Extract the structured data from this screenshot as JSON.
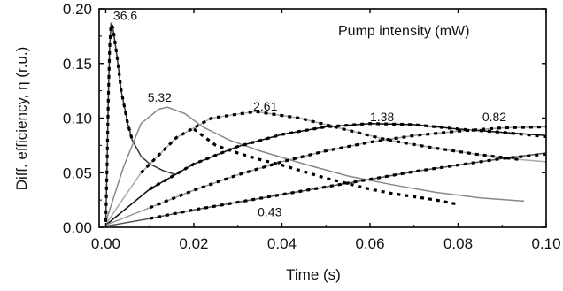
{
  "chart_data": {
    "type": "line",
    "xlabel": "Time (s)",
    "ylabel": "Diff. efficiency, η (r.u.)",
    "xlim": [
      -0.0015,
      0.1
    ],
    "ylim": [
      0.0,
      0.2
    ],
    "xticks": [
      "0.00",
      "0.02",
      "0.04",
      "0.06",
      "0.08",
      "0.10"
    ],
    "yticks": [
      "0.00",
      "0.05",
      "0.10",
      "0.15",
      "0.20"
    ],
    "legend_title": "Pump intensity (mW)",
    "grid": false,
    "series": [
      {
        "name": "36.6",
        "line_color": "#333333",
        "points": [
          [
            0,
            0.005
          ],
          [
            0.0003,
            0.06
          ],
          [
            0.0006,
            0.12
          ],
          [
            0.0009,
            0.165
          ],
          [
            0.0012,
            0.186
          ],
          [
            0.0016,
            0.183
          ],
          [
            0.002,
            0.172
          ],
          [
            0.0025,
            0.158
          ],
          [
            0.003,
            0.142
          ],
          [
            0.0035,
            0.125
          ],
          [
            0.004,
            0.115
          ],
          [
            0.005,
            0.095
          ],
          [
            0.006,
            0.08
          ],
          [
            0.008,
            0.065
          ],
          [
            0.01,
            0.058
          ],
          [
            0.013,
            0.052
          ],
          [
            0.016,
            0.048
          ]
        ],
        "fit": [
          [
            0,
            0.005
          ],
          [
            0.0003,
            0.06
          ],
          [
            0.0006,
            0.12
          ],
          [
            0.0009,
            0.165
          ],
          [
            0.0012,
            0.186
          ],
          [
            0.0016,
            0.183
          ],
          [
            0.002,
            0.172
          ],
          [
            0.0025,
            0.158
          ],
          [
            0.003,
            0.142
          ],
          [
            0.0035,
            0.125
          ],
          [
            0.004,
            0.115
          ],
          [
            0.005,
            0.095
          ],
          [
            0.006,
            0.08
          ]
        ]
      },
      {
        "name": "5.32",
        "line_color": "#888888",
        "points": [
          [
            0,
            0.005
          ],
          [
            0.004,
            0.055
          ],
          [
            0.008,
            0.095
          ],
          [
            0.012,
            0.108
          ],
          [
            0.014,
            0.11
          ],
          [
            0.018,
            0.104
          ],
          [
            0.022,
            0.092
          ],
          [
            0.028,
            0.08
          ],
          [
            0.035,
            0.07
          ],
          [
            0.045,
            0.058
          ],
          [
            0.055,
            0.047
          ],
          [
            0.065,
            0.039
          ],
          [
            0.075,
            0.032
          ],
          [
            0.085,
            0.027
          ],
          [
            0.095,
            0.024
          ]
        ],
        "fit": [
          [
            0.02,
            0.09
          ],
          [
            0.025,
            0.075
          ],
          [
            0.03,
            0.068
          ],
          [
            0.035,
            0.062
          ],
          [
            0.04,
            0.057
          ],
          [
            0.045,
            0.051
          ],
          [
            0.05,
            0.045
          ],
          [
            0.055,
            0.04
          ],
          [
            0.06,
            0.035
          ],
          [
            0.065,
            0.031
          ],
          [
            0.07,
            0.028
          ],
          [
            0.075,
            0.025
          ],
          [
            0.08,
            0.021
          ]
        ]
      },
      {
        "name": "2.61",
        "line_color": "#aaaaaa",
        "points": [
          [
            0,
            0.003
          ],
          [
            0.008,
            0.05
          ],
          [
            0.016,
            0.082
          ],
          [
            0.024,
            0.1
          ],
          [
            0.034,
            0.106
          ],
          [
            0.044,
            0.1
          ],
          [
            0.054,
            0.09
          ],
          [
            0.064,
            0.08
          ],
          [
            0.074,
            0.073
          ],
          [
            0.084,
            0.067
          ],
          [
            0.094,
            0.062
          ],
          [
            0.1,
            0.06
          ]
        ],
        "fit": [
          [
            0.008,
            0.05
          ],
          [
            0.016,
            0.082
          ],
          [
            0.024,
            0.1
          ],
          [
            0.034,
            0.106
          ],
          [
            0.044,
            0.1
          ],
          [
            0.054,
            0.09
          ],
          [
            0.064,
            0.08
          ],
          [
            0.074,
            0.073
          ],
          [
            0.084,
            0.067
          ],
          [
            0.094,
            0.062
          ]
        ]
      },
      {
        "name": "1.38",
        "line_color": "#111111",
        "points": [
          [
            0,
            0.002
          ],
          [
            0.01,
            0.035
          ],
          [
            0.02,
            0.058
          ],
          [
            0.03,
            0.074
          ],
          [
            0.04,
            0.085
          ],
          [
            0.05,
            0.092
          ],
          [
            0.06,
            0.095
          ],
          [
            0.07,
            0.094
          ],
          [
            0.08,
            0.09
          ],
          [
            0.09,
            0.087
          ],
          [
            0.1,
            0.084
          ]
        ],
        "fit": [
          [
            0.01,
            0.035
          ],
          [
            0.02,
            0.058
          ],
          [
            0.03,
            0.074
          ],
          [
            0.04,
            0.085
          ],
          [
            0.05,
            0.092
          ],
          [
            0.06,
            0.095
          ],
          [
            0.07,
            0.094
          ],
          [
            0.08,
            0.09
          ],
          [
            0.09,
            0.087
          ],
          [
            0.1,
            0.083
          ]
        ]
      },
      {
        "name": "0.82",
        "line_color": "#999999",
        "points": [
          [
            0,
            0.002
          ],
          [
            0.01,
            0.018
          ],
          [
            0.02,
            0.034
          ],
          [
            0.03,
            0.048
          ],
          [
            0.04,
            0.06
          ],
          [
            0.05,
            0.07
          ],
          [
            0.06,
            0.078
          ],
          [
            0.07,
            0.084
          ],
          [
            0.08,
            0.088
          ],
          [
            0.09,
            0.091
          ],
          [
            0.1,
            0.092
          ]
        ],
        "fit": [
          [
            0.01,
            0.018
          ],
          [
            0.02,
            0.034
          ],
          [
            0.03,
            0.048
          ],
          [
            0.04,
            0.06
          ],
          [
            0.05,
            0.07
          ],
          [
            0.06,
            0.078
          ],
          [
            0.07,
            0.084
          ],
          [
            0.08,
            0.088
          ],
          [
            0.09,
            0.091
          ],
          [
            0.1,
            0.092
          ]
        ]
      },
      {
        "name": "0.43",
        "line_color": "#555555",
        "points": [
          [
            0,
            0.001
          ],
          [
            0.01,
            0.008
          ],
          [
            0.02,
            0.016
          ],
          [
            0.03,
            0.023
          ],
          [
            0.04,
            0.03
          ],
          [
            0.05,
            0.037
          ],
          [
            0.06,
            0.044
          ],
          [
            0.07,
            0.051
          ],
          [
            0.08,
            0.057
          ],
          [
            0.09,
            0.063
          ],
          [
            0.1,
            0.068
          ]
        ],
        "fit": [
          [
            0.01,
            0.008
          ],
          [
            0.02,
            0.016
          ],
          [
            0.03,
            0.023
          ],
          [
            0.04,
            0.03
          ],
          [
            0.05,
            0.037
          ],
          [
            0.06,
            0.044
          ],
          [
            0.07,
            0.051
          ],
          [
            0.08,
            0.057
          ],
          [
            0.09,
            0.063
          ],
          [
            0.1,
            0.067
          ]
        ]
      }
    ],
    "curve_labels": [
      {
        "text": "36.6",
        "x": 0.0017,
        "y": 0.19
      },
      {
        "text": "5.32",
        "x": 0.0095,
        "y": 0.115
      },
      {
        "text": "2.61",
        "x": 0.0335,
        "y": 0.107
      },
      {
        "text": "1.38",
        "x": 0.06,
        "y": 0.097
      },
      {
        "text": "0.82",
        "x": 0.0855,
        "y": 0.097
      },
      {
        "text": "0.43",
        "x": 0.0345,
        "y": 0.01
      }
    ]
  }
}
